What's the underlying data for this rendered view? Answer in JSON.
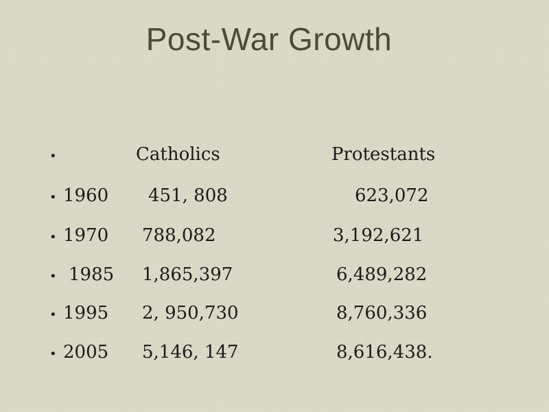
{
  "slide": {
    "title": "Post-War Growth",
    "bullet": "•",
    "header": {
      "catholics": "Catholics",
      "protestants": "Protestants"
    },
    "rows": [
      {
        "year": "1960",
        "catholics": "451, 808",
        "protestants": "623,072"
      },
      {
        "year": "1970",
        "catholics": "788,082",
        "protestants": "3,192,621"
      },
      {
        "year": "1985",
        "catholics": "1,865,397",
        "protestants": "6,489,282"
      },
      {
        "year": "1995",
        "catholics": "2, 950,730",
        "protestants": "8,760,336"
      },
      {
        "year": "2005",
        "catholics": "5,146, 147",
        "protestants": "8,616,438."
      }
    ]
  }
}
